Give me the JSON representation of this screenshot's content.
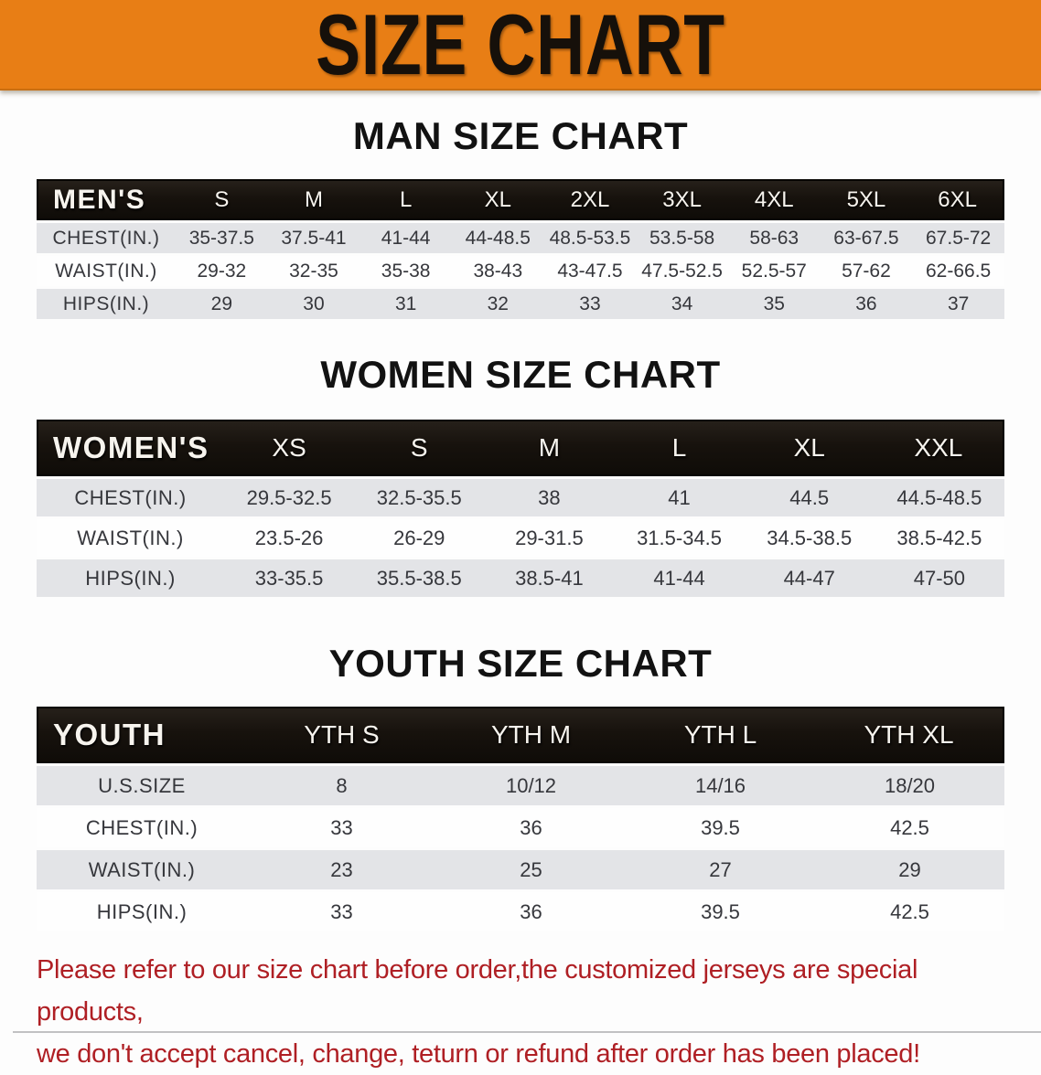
{
  "banner": {
    "title": "SIZE CHART",
    "bg_color": "#E87E15",
    "text_color": "#16100A"
  },
  "chart_data": [
    {
      "type": "table",
      "title": "MAN SIZE CHART",
      "header_label": "MEN'S",
      "columns": [
        "S",
        "M",
        "L",
        "XL",
        "2XL",
        "3XL",
        "4XL",
        "5XL",
        "6XL"
      ],
      "rows": [
        {
          "label": "CHEST(IN.)",
          "values": [
            "35-37.5",
            "37.5-41",
            "41-44",
            "44-48.5",
            "48.5-53.5",
            "53.5-58",
            "58-63",
            "63-67.5",
            "67.5-72"
          ]
        },
        {
          "label": "WAIST(IN.)",
          "values": [
            "29-32",
            "32-35",
            "35-38",
            "38-43",
            "43-47.5",
            "47.5-52.5",
            "52.5-57",
            "57-62",
            "62-66.5"
          ]
        },
        {
          "label": "HIPS(IN.)",
          "values": [
            "29",
            "30",
            "31",
            "32",
            "33",
            "34",
            "35",
            "36",
            "37"
          ]
        }
      ]
    },
    {
      "type": "table",
      "title": "WOMEN SIZE CHART",
      "header_label": "WOMEN'S",
      "columns": [
        "XS",
        "S",
        "M",
        "L",
        "XL",
        "XXL"
      ],
      "rows": [
        {
          "label": "CHEST(IN.)",
          "values": [
            "29.5-32.5",
            "32.5-35.5",
            "38",
            "41",
            "44.5",
            "44.5-48.5"
          ]
        },
        {
          "label": "WAIST(IN.)",
          "values": [
            "23.5-26",
            "26-29",
            "29-31.5",
            "31.5-34.5",
            "34.5-38.5",
            "38.5-42.5"
          ]
        },
        {
          "label": "HIPS(IN.)",
          "values": [
            "33-35.5",
            "35.5-38.5",
            "38.5-41",
            "41-44",
            "44-47",
            "47-50"
          ]
        }
      ]
    },
    {
      "type": "table",
      "title": "YOUTH SIZE CHART",
      "header_label": "YOUTH",
      "columns": [
        "YTH S",
        "YTH M",
        "YTH L",
        "YTH XL"
      ],
      "rows": [
        {
          "label": "U.S.SIZE",
          "values": [
            "8",
            "10/12",
            "14/16",
            "18/20"
          ]
        },
        {
          "label": "CHEST(IN.)",
          "values": [
            "33",
            "36",
            "39.5",
            "42.5"
          ]
        },
        {
          "label": "WAIST(IN.)",
          "values": [
            "23",
            "25",
            "27",
            "29"
          ]
        },
        {
          "label": "HIPS(IN.)",
          "values": [
            "33",
            "36",
            "39.5",
            "42.5"
          ]
        }
      ]
    }
  ],
  "disclaimer": {
    "color": "#AF1F24",
    "lines": [
      "Please refer to our size chart before order,the customized jerseys are special products,",
      "we don't accept cancel, change, teturn or refund after order has been placed!"
    ]
  },
  "table_colors": {
    "header_bg": "#17120D",
    "header_text": "#F7F4EE",
    "row_shaded_bg": "#E3E4E7",
    "row_plain_bg": "#FEFEFE",
    "value_text": "#36373C"
  }
}
